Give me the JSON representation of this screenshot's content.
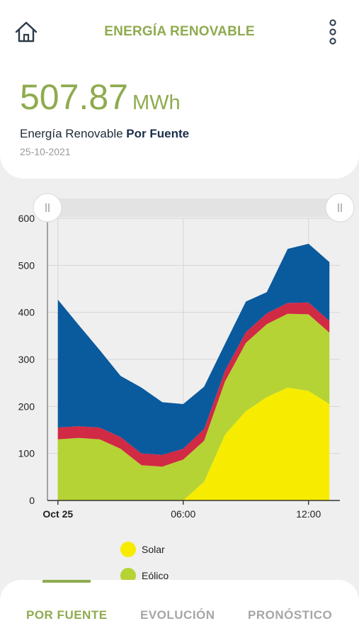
{
  "header": {
    "title": "ENERGÍA RENOVABLE",
    "home_icon": "home-icon",
    "menu_icon": "more-vertical-icon"
  },
  "summary": {
    "value": "507.87",
    "unit": "MWh",
    "label_prefix": "Energía Renovable",
    "label_bold": "Por Fuente",
    "date": "25-10-2021"
  },
  "chart_data": {
    "type": "area",
    "stacked": true,
    "x": [
      0,
      1,
      2,
      3,
      4,
      5,
      6,
      7,
      8,
      9,
      10,
      11,
      12,
      13
    ],
    "x_ticks": [
      {
        "x": 0,
        "label": "Oct 25",
        "bold": true
      },
      {
        "x": 6,
        "label": "06:00",
        "bold": false
      },
      {
        "x": 12,
        "label": "12:00",
        "bold": false
      }
    ],
    "y_ticks": [
      0,
      100,
      200,
      300,
      400,
      500,
      600
    ],
    "ylim": [
      0,
      600
    ],
    "xlim": [
      -0.5,
      13.5
    ],
    "grid": true,
    "series": [
      {
        "name": "Solar",
        "color": "#f7ec00",
        "values": [
          0,
          0,
          0,
          0,
          0,
          0,
          0,
          40,
          140,
          190,
          220,
          240,
          233,
          205
        ]
      },
      {
        "name": "Eólico",
        "color": "#b5d334",
        "values": [
          130,
          133,
          130,
          110,
          75,
          72,
          87,
          87,
          113,
          145,
          155,
          157,
          163,
          152
        ]
      },
      {
        "values": [
          25,
          25,
          25,
          25,
          25,
          25,
          23,
          25,
          23,
          23,
          23,
          23,
          25,
          25
        ]
      },
      {
        "values": [
          272,
          215,
          165,
          130,
          140,
          112,
          95,
          90,
          57,
          65,
          45,
          115,
          125,
          125
        ]
      }
    ],
    "series_colors_extra": [
      "#d12a44",
      "#0a5a9e"
    ]
  },
  "legend": [
    {
      "label": "Solar",
      "color": "#f7ec00"
    },
    {
      "label": "Eólico",
      "color": "#b5d334"
    }
  ],
  "tabs": [
    {
      "label": "POR FUENTE",
      "active": true
    },
    {
      "label": "EVOLUCIÓN",
      "active": false
    },
    {
      "label": "PRONÓSTICO",
      "active": false
    }
  ],
  "slider_handle_icon": "drag-handle-icon"
}
